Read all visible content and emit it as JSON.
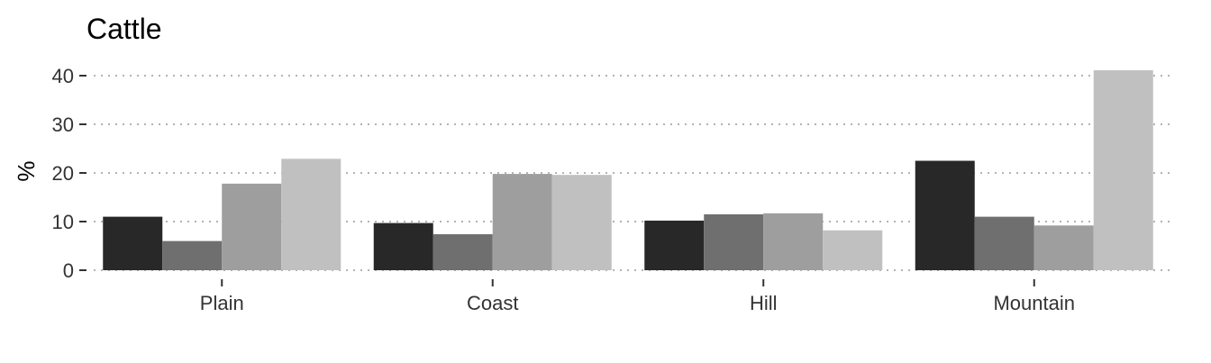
{
  "chart_data": {
    "type": "bar",
    "title": "Cattle",
    "xlabel": "",
    "ylabel": "%",
    "categories": [
      "Plain",
      "Coast",
      "Hill",
      "Mountain"
    ],
    "series": [
      {
        "values": [
          11,
          9.7,
          10.2,
          22.5
        ],
        "color": "#282828"
      },
      {
        "values": [
          6,
          7.4,
          11.5,
          11
        ],
        "color": "#6f6f6f"
      },
      {
        "values": [
          17.8,
          19.8,
          11.7,
          9.2
        ],
        "color": "#9e9e9e"
      },
      {
        "values": [
          22.9,
          19.6,
          8.2,
          41.1
        ],
        "color": "#c0c0c0"
      }
    ],
    "ylim": [
      0,
      43
    ],
    "yticks": [
      0,
      10,
      20,
      30,
      40
    ],
    "grid": true,
    "legend": "none"
  }
}
